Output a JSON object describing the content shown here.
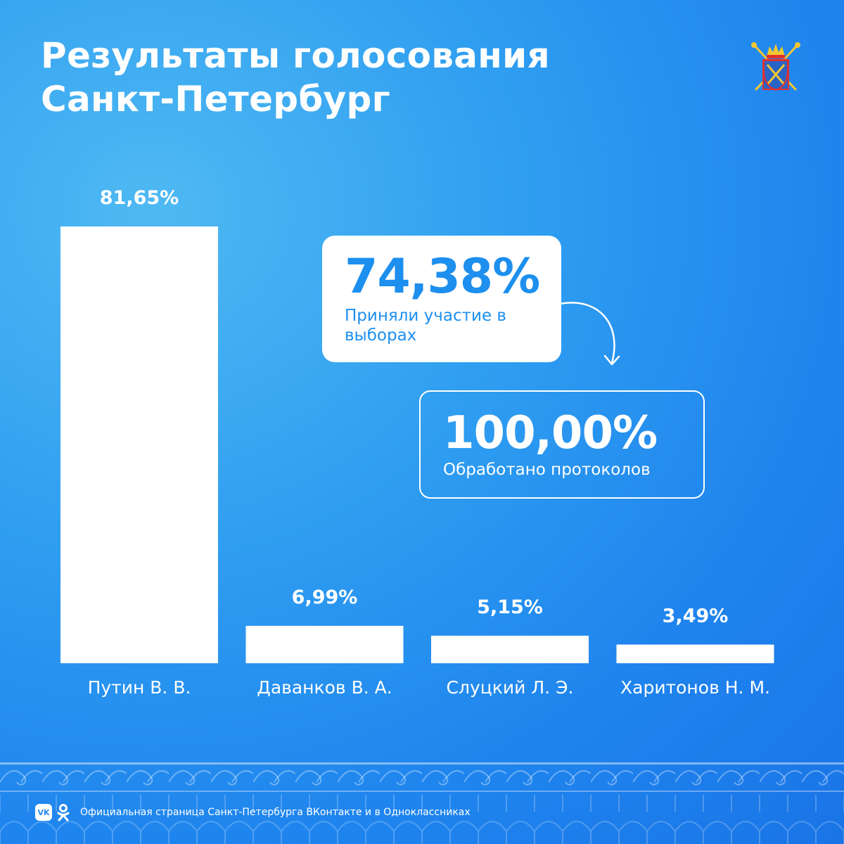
{
  "header": {
    "title_line1": "Результаты голосования",
    "title_line2": "Санкт-Петербург",
    "emblem_icon": "spb-coat-of-arms-icon"
  },
  "chart_data": {
    "type": "bar",
    "categories": [
      "Путин В. В.",
      "Даванков В. А.",
      "Слуцкий Л. Э.",
      "Харитонов Н. М."
    ],
    "values": [
      81.65,
      6.99,
      5.15,
      3.49
    ],
    "value_labels": [
      "81,65%",
      "6,99%",
      "5,15%",
      "3,49%"
    ],
    "title": "",
    "xlabel": "",
    "ylabel": "",
    "ylim": [
      0,
      100
    ],
    "grid": false,
    "bar_color": "#ffffff"
  },
  "stats": {
    "turnout": {
      "value": "74,38%",
      "label": "Приняли участие в выборах"
    },
    "protocols": {
      "value": "100,00%",
      "label": "Обработано протоколов"
    }
  },
  "footer": {
    "vk_icon": "vk-icon",
    "vk_text": "VK",
    "ok_icon": "odnoklassniki-icon",
    "text": "Официальная страница Санкт-Петербурга ВКонтакте и в Одноклассниках"
  },
  "colors": {
    "background_light": "#4fb9f3",
    "background_dark": "#1a74e6",
    "accent": "#1d8fee",
    "foreground": "#ffffff"
  }
}
